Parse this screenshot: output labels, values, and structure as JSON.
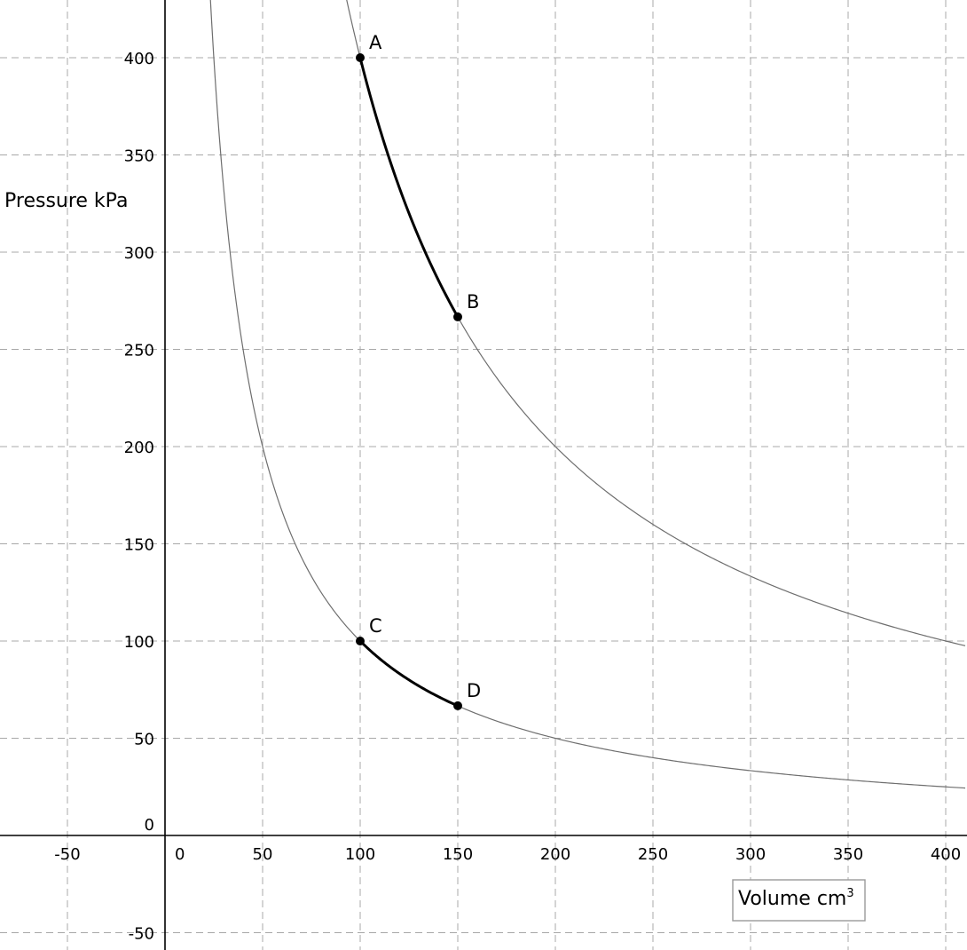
{
  "chart_data": {
    "type": "line",
    "xlabel": "Volume cm",
    "xlabel_superscript": "3",
    "ylabel": "Pressure kPa",
    "xlim": [
      -90,
      410
    ],
    "ylim": [
      -55,
      425
    ],
    "x_ticks": [
      -50,
      0,
      50,
      100,
      150,
      200,
      250,
      300,
      350,
      400
    ],
    "x_tick_labels": [
      "-50",
      "0",
      "50",
      "100",
      "150",
      "200",
      "250",
      "300",
      "350",
      "400"
    ],
    "y_ticks": [
      -50,
      0,
      50,
      100,
      150,
      200,
      250,
      300,
      350,
      400
    ],
    "y_tick_labels": [
      "-50",
      "0",
      "50",
      "100",
      "150",
      "200",
      "250",
      "300",
      "350",
      "400"
    ],
    "grid": true,
    "series": [
      {
        "k": 40000,
        "x_range": [
          20,
          410
        ]
      },
      {
        "k": 10000,
        "x_range": [
          20,
          410
        ]
      }
    ],
    "segments": [
      {
        "from": "A",
        "to": "B",
        "k": 40000
      },
      {
        "from": "C",
        "to": "D",
        "k": 10000
      }
    ],
    "points": [
      {
        "label": "A",
        "x": 100,
        "y": 400
      },
      {
        "label": "B",
        "x": 150,
        "y": 266.7
      },
      {
        "label": "C",
        "x": 100,
        "y": 100
      },
      {
        "label": "D",
        "x": 150,
        "y": 66.7
      }
    ],
    "colors": {
      "curve": "#6e6e6e",
      "segment": "#000000",
      "grid": "#a8a8a8"
    }
  }
}
